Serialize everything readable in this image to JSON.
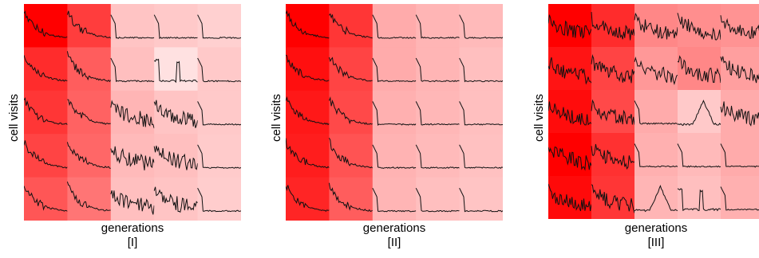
{
  "caption": "",
  "chart_data": [
    {
      "type": "heatmap",
      "panel_label": "[I]",
      "xlabel": "generations",
      "ylabel": "cell visits",
      "rows": 5,
      "cols": 5,
      "cell_intensity": [
        [
          1.0,
          0.75,
          0.2,
          0.18,
          0.15
        ],
        [
          0.82,
          0.62,
          0.22,
          0.08,
          0.18
        ],
        [
          0.78,
          0.6,
          0.26,
          0.2,
          0.18
        ],
        [
          0.72,
          0.58,
          0.24,
          0.22,
          0.17
        ],
        [
          0.65,
          0.52,
          0.22,
          0.2,
          0.16
        ]
      ],
      "cell_shape": [
        [
          "decay",
          "decay",
          "step",
          "step",
          "step"
        ],
        [
          "decay",
          "decay",
          "step",
          "spike",
          "step"
        ],
        [
          "decay",
          "decay",
          "noisy",
          "noisy",
          "step"
        ],
        [
          "decay",
          "decay",
          "noisy",
          "noisy",
          "step"
        ],
        [
          "decay",
          "decay",
          "noisy",
          "noisy",
          "step"
        ]
      ]
    },
    {
      "type": "heatmap",
      "panel_label": "[II]",
      "xlabel": "generations",
      "ylabel": "cell visits",
      "rows": 5,
      "cols": 5,
      "cell_intensity": [
        [
          1.0,
          0.78,
          0.3,
          0.26,
          0.24
        ],
        [
          0.94,
          0.72,
          0.3,
          0.26,
          0.22
        ],
        [
          0.9,
          0.7,
          0.28,
          0.25,
          0.22
        ],
        [
          0.88,
          0.66,
          0.27,
          0.24,
          0.21
        ],
        [
          0.85,
          0.62,
          0.26,
          0.22,
          0.2
        ]
      ],
      "cell_shape": [
        [
          "decay",
          "decay",
          "step",
          "step",
          "step"
        ],
        [
          "decay",
          "decay",
          "step",
          "step",
          "step"
        ],
        [
          "decay",
          "decay",
          "step",
          "step",
          "step"
        ],
        [
          "decay",
          "decay",
          "step",
          "step",
          "step"
        ],
        [
          "decay",
          "decay",
          "step",
          "step",
          "step"
        ]
      ]
    },
    {
      "type": "heatmap",
      "panel_label": "[III]",
      "xlabel": "generations",
      "ylabel": "cell visits",
      "rows": 5,
      "cols": 5,
      "cell_intensity": [
        [
          1.0,
          0.82,
          0.45,
          0.42,
          0.4
        ],
        [
          0.92,
          0.72,
          0.38,
          0.45,
          0.35
        ],
        [
          0.95,
          0.7,
          0.3,
          0.18,
          0.3
        ],
        [
          1.0,
          0.8,
          0.28,
          0.24,
          0.3
        ],
        [
          0.96,
          0.78,
          0.26,
          0.22,
          0.28
        ]
      ],
      "cell_shape": [
        [
          "noisy",
          "noisy",
          "noisy",
          "noisy",
          "noisy"
        ],
        [
          "noisy",
          "noisy",
          "noisy",
          "noisy",
          "noisy"
        ],
        [
          "noisy",
          "noisy",
          "step",
          "peak",
          "noisy"
        ],
        [
          "noisy",
          "noisy",
          "step",
          "step",
          "step"
        ],
        [
          "noisy",
          "noisy",
          "peak",
          "spike",
          "step"
        ]
      ]
    }
  ]
}
